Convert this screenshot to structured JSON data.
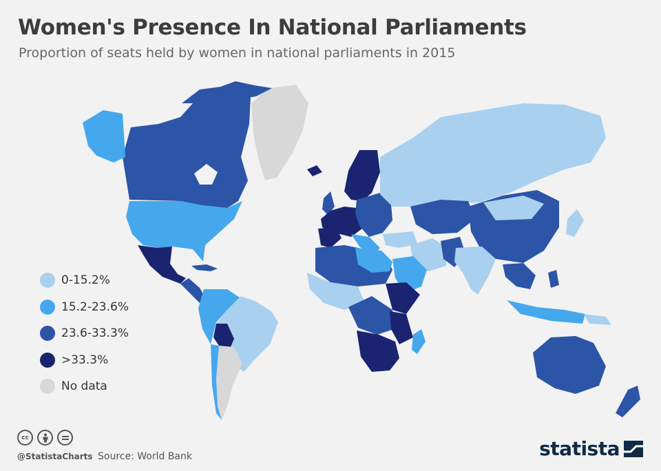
{
  "title": "Women's Presence In National Parliaments",
  "subtitle": "Proportion of seats held by women in national parliaments in 2015",
  "legend": [
    {
      "label": "0-15.2%",
      "color": "#a9d0ef"
    },
    {
      "label": "15.2-23.6%",
      "color": "#45a8ec"
    },
    {
      "label": "23.6-33.3%",
      "color": "#2c55a8"
    },
    {
      "label": ">33.3%",
      "color": "#1b2470"
    },
    {
      "label": "No data",
      "color": "#d8d8d8"
    }
  ],
  "footer": {
    "handle": "@StatistaCharts",
    "source": "Source: World Bank",
    "license_icons": [
      "cc-icon",
      "by-icon",
      "nd-icon"
    ],
    "logo": "statista"
  }
}
